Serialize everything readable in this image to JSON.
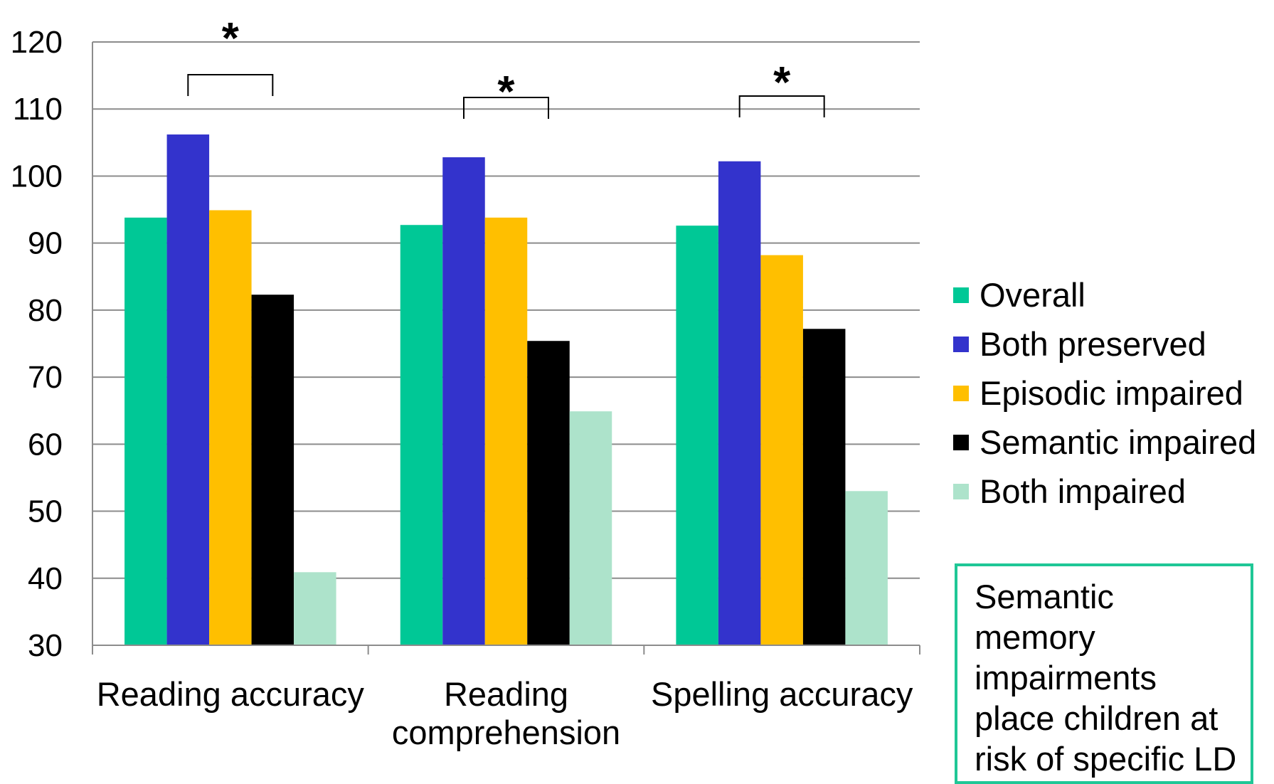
{
  "chart_data": {
    "type": "bar",
    "categories": [
      "Reading accuracy",
      "Reading comprehension",
      "Spelling accuracy"
    ],
    "category_lines": [
      [
        "Reading accuracy"
      ],
      [
        "Reading",
        "comprehension"
      ],
      [
        "Spelling accuracy"
      ]
    ],
    "series": [
      {
        "name": "Overall",
        "color": "#00c896",
        "values": [
          93.8,
          92.7,
          92.6
        ]
      },
      {
        "name": "Both preserved",
        "color": "#3333cc",
        "values": [
          106.2,
          102.8,
          102.2
        ]
      },
      {
        "name": "Episodic impaired",
        "color": "#ffbf00",
        "values": [
          94.9,
          93.8,
          88.2
        ]
      },
      {
        "name": "Semantic impaired",
        "color": "#000000",
        "values": [
          82.3,
          75.4,
          77.2
        ]
      },
      {
        "name": "Both impaired",
        "color": "#ade3cb",
        "values": [
          40.9,
          64.9,
          53.0
        ]
      }
    ],
    "ylim": [
      30,
      120
    ],
    "yticks": [
      30,
      40,
      50,
      60,
      70,
      80,
      90,
      100,
      110,
      120
    ],
    "grid": true,
    "legend_position": "right",
    "significance": [
      {
        "category": "Reading accuracy",
        "marker": "*",
        "between": [
          "Both preserved",
          "Semantic impaired"
        ]
      },
      {
        "category": "Reading comprehension",
        "marker": "*",
        "between": [
          "Both preserved",
          "Semantic impaired"
        ]
      },
      {
        "category": "Spelling accuracy",
        "marker": "*",
        "between": [
          "Both preserved",
          "Semantic impaired"
        ]
      }
    ]
  },
  "note": {
    "text": "Semantic\nmemory\nimpairments\nplace children at\nrisk of specific LD",
    "border_color": "#1fc796"
  }
}
